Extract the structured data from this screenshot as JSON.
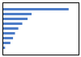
{
  "chart_data": {
    "type": "bar",
    "orientation": "horizontal",
    "categories": [
      null,
      null,
      null,
      null,
      null,
      null,
      null,
      null,
      null
    ],
    "values": [
      1.0,
      0.44,
      0.38,
      0.3,
      0.24,
      0.19,
      0.16,
      0.12,
      0.04
    ],
    "color": "#4d7cc7",
    "xlim": [
      0,
      1.15
    ],
    "tick_labels": false
  }
}
